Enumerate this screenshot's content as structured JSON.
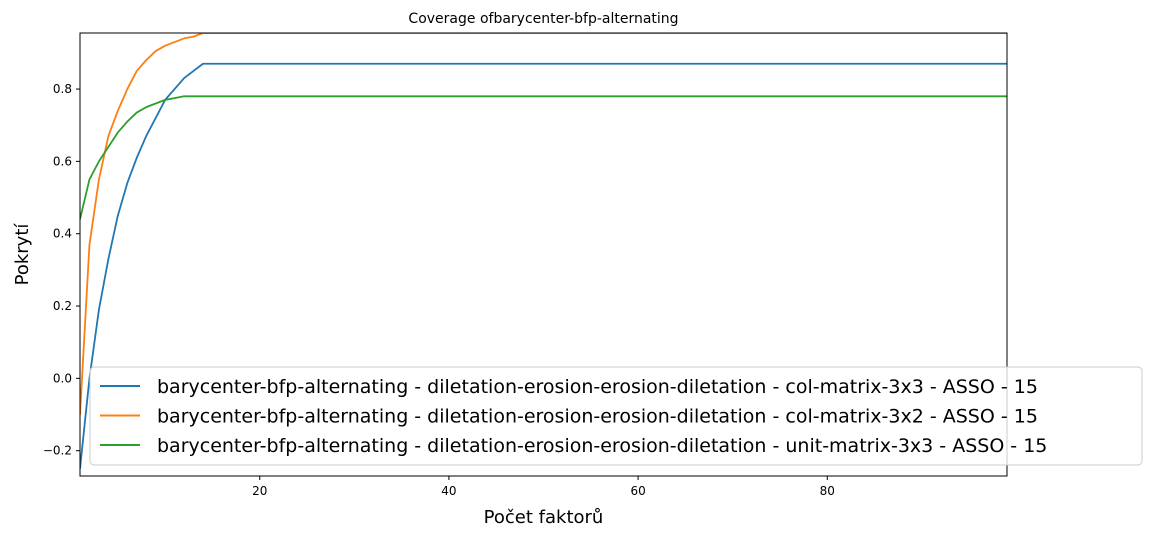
{
  "chart_data": {
    "type": "line",
    "title": "Coverage ofbarycenter-bfp-alternating",
    "xlabel": "Počet faktorů",
    "ylabel": "Pokrytí",
    "xlim": [
      1,
      99
    ],
    "ylim": [
      -0.27,
      0.955
    ],
    "xticks": [
      20,
      40,
      60,
      80
    ],
    "yticks": [
      -0.2,
      0.0,
      0.2,
      0.4,
      0.6,
      0.8
    ],
    "ytick_labels": [
      "−0.2",
      "0.0",
      "0.2",
      "0.4",
      "0.6",
      "0.8"
    ],
    "grid": false,
    "legend_position": "lower-right",
    "series": [
      {
        "name": "barycenter-bfp-alternating - diletation-erosion-erosion-diletation - col-matrix-3x3 - ASSO - 15",
        "color": "#1f77b4",
        "x": [
          1,
          2,
          3,
          4,
          5,
          6,
          7,
          8,
          9,
          10,
          11,
          12,
          13,
          14,
          99
        ],
        "y": [
          -0.25,
          0.0,
          0.19,
          0.33,
          0.45,
          0.54,
          0.61,
          0.67,
          0.72,
          0.77,
          0.8,
          0.83,
          0.85,
          0.87,
          0.87
        ]
      },
      {
        "name": "barycenter-bfp-alternating - diletation-erosion-erosion-diletation - col-matrix-3x2 - ASSO - 15",
        "color": "#ff7f0e",
        "x": [
          1,
          2,
          3,
          4,
          5,
          6,
          7,
          8,
          9,
          10,
          11,
          12,
          13,
          14,
          99
        ],
        "y": [
          -0.1,
          0.37,
          0.55,
          0.67,
          0.74,
          0.8,
          0.85,
          0.88,
          0.905,
          0.92,
          0.93,
          0.94,
          0.945,
          0.955,
          0.955
        ]
      },
      {
        "name": "barycenter-bfp-alternating - diletation-erosion-erosion-diletation - unit-matrix-3x3 - ASSO - 15",
        "color": "#2ca02c",
        "x": [
          1,
          2,
          3,
          4,
          5,
          6,
          7,
          8,
          9,
          10,
          11,
          12,
          99
        ],
        "y": [
          0.44,
          0.55,
          0.6,
          0.64,
          0.68,
          0.71,
          0.735,
          0.75,
          0.76,
          0.77,
          0.775,
          0.78,
          0.78
        ]
      }
    ]
  }
}
